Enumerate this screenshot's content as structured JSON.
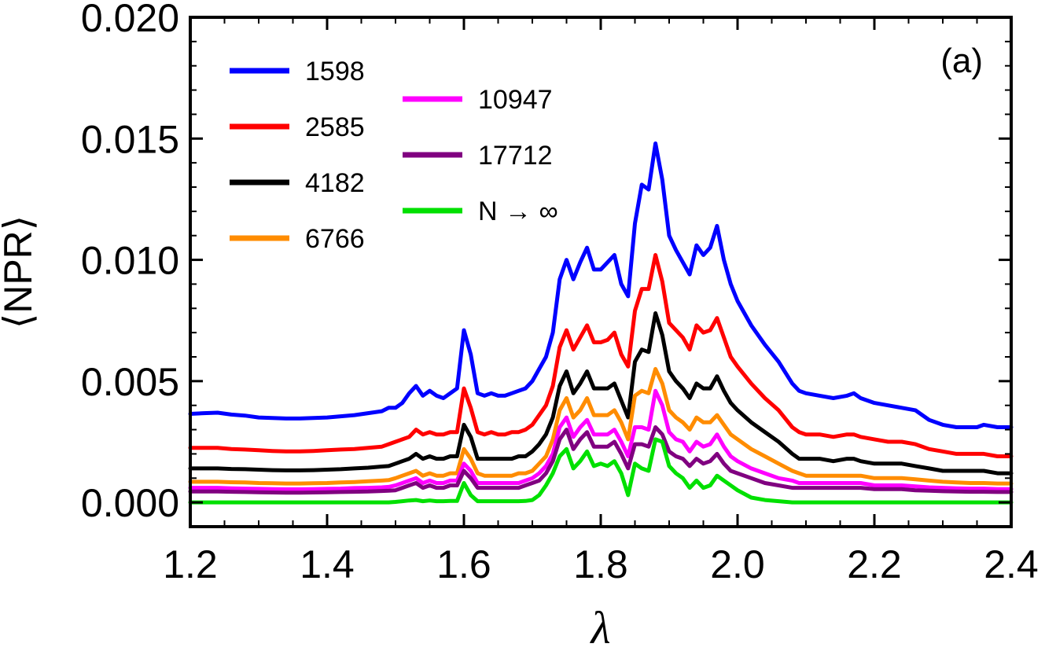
{
  "chart_data": {
    "type": "line",
    "title": "",
    "panel_label": "(a)",
    "xlabel": "λ",
    "ylabel": "⟨NPR⟩",
    "xlim": [
      1.2,
      2.4
    ],
    "ylim": [
      -0.001,
      0.02
    ],
    "xticks": [
      "1.2",
      "1.4",
      "1.6",
      "1.8",
      "2.0",
      "2.2",
      "2.4"
    ],
    "yticks": [
      "0.000",
      "0.005",
      "0.010",
      "0.015",
      "0.020"
    ],
    "grid": false,
    "legend_position": "top-left",
    "x": [
      1.2,
      1.22,
      1.24,
      1.26,
      1.28,
      1.3,
      1.32,
      1.34,
      1.36,
      1.38,
      1.4,
      1.42,
      1.44,
      1.46,
      1.48,
      1.49,
      1.5,
      1.51,
      1.52,
      1.53,
      1.54,
      1.55,
      1.56,
      1.57,
      1.58,
      1.59,
      1.6,
      1.61,
      1.62,
      1.63,
      1.64,
      1.65,
      1.66,
      1.67,
      1.68,
      1.69,
      1.7,
      1.71,
      1.72,
      1.73,
      1.74,
      1.75,
      1.76,
      1.77,
      1.78,
      1.79,
      1.8,
      1.81,
      1.82,
      1.83,
      1.84,
      1.85,
      1.86,
      1.87,
      1.88,
      1.89,
      1.9,
      1.91,
      1.92,
      1.93,
      1.94,
      1.95,
      1.96,
      1.97,
      1.98,
      1.99,
      2.0,
      2.02,
      2.04,
      2.06,
      2.08,
      2.09,
      2.1,
      2.12,
      2.14,
      2.16,
      2.17,
      2.18,
      2.2,
      2.22,
      2.24,
      2.26,
      2.28,
      2.3,
      2.32,
      2.34,
      2.35,
      2.36,
      2.38,
      2.4
    ],
    "series": [
      {
        "name": "1598",
        "color": "#0000ff",
        "values": [
          0.00365,
          0.00368,
          0.0037,
          0.00362,
          0.00358,
          0.0035,
          0.00348,
          0.00346,
          0.00346,
          0.00348,
          0.0035,
          0.00355,
          0.0036,
          0.00368,
          0.00376,
          0.0039,
          0.0039,
          0.0041,
          0.0045,
          0.0048,
          0.0044,
          0.0046,
          0.0044,
          0.0043,
          0.0045,
          0.0047,
          0.0071,
          0.0061,
          0.0045,
          0.0044,
          0.0045,
          0.0044,
          0.0044,
          0.0045,
          0.0046,
          0.0047,
          0.005,
          0.0055,
          0.006,
          0.007,
          0.0092,
          0.01,
          0.0092,
          0.0099,
          0.0105,
          0.0096,
          0.0096,
          0.0099,
          0.0102,
          0.009,
          0.0085,
          0.0115,
          0.0131,
          0.0129,
          0.0148,
          0.0133,
          0.011,
          0.0104,
          0.0099,
          0.0094,
          0.0106,
          0.0102,
          0.0105,
          0.0114,
          0.01,
          0.009,
          0.0083,
          0.0073,
          0.0065,
          0.0058,
          0.0049,
          0.0046,
          0.0045,
          0.0044,
          0.0043,
          0.0044,
          0.0045,
          0.0043,
          0.0041,
          0.004,
          0.0039,
          0.0038,
          0.0034,
          0.0032,
          0.0031,
          0.0031,
          0.0031,
          0.0032,
          0.0031,
          0.0031
        ]
      },
      {
        "name": "2585",
        "color": "#ff0000",
        "values": [
          0.00225,
          0.00225,
          0.00225,
          0.0022,
          0.00218,
          0.00215,
          0.00212,
          0.0021,
          0.0021,
          0.00212,
          0.00215,
          0.00218,
          0.0022,
          0.00225,
          0.0023,
          0.0024,
          0.0025,
          0.0026,
          0.0027,
          0.003,
          0.0028,
          0.0029,
          0.0028,
          0.0028,
          0.0029,
          0.0029,
          0.0047,
          0.0039,
          0.0029,
          0.0028,
          0.0029,
          0.0028,
          0.0028,
          0.0029,
          0.0029,
          0.003,
          0.0032,
          0.0036,
          0.004,
          0.0048,
          0.0064,
          0.0071,
          0.0063,
          0.0068,
          0.0073,
          0.0066,
          0.0066,
          0.0067,
          0.007,
          0.0061,
          0.0056,
          0.0079,
          0.0088,
          0.0088,
          0.0102,
          0.0091,
          0.0074,
          0.0071,
          0.0068,
          0.0063,
          0.0073,
          0.007,
          0.0071,
          0.0076,
          0.0068,
          0.006,
          0.0056,
          0.0049,
          0.0043,
          0.0038,
          0.0031,
          0.0029,
          0.0028,
          0.0028,
          0.0027,
          0.0028,
          0.0028,
          0.0027,
          0.0026,
          0.0025,
          0.0025,
          0.0024,
          0.0022,
          0.0021,
          0.002,
          0.002,
          0.002,
          0.002,
          0.0019,
          0.0019
        ]
      },
      {
        "name": "4182",
        "color": "#000000",
        "values": [
          0.0014,
          0.0014,
          0.0014,
          0.00138,
          0.00137,
          0.00135,
          0.00133,
          0.00132,
          0.00132,
          0.00133,
          0.00135,
          0.00137,
          0.0014,
          0.00143,
          0.00148,
          0.0015,
          0.0016,
          0.0017,
          0.0018,
          0.002,
          0.0018,
          0.0019,
          0.0018,
          0.0018,
          0.0019,
          0.0019,
          0.0032,
          0.0027,
          0.0018,
          0.0018,
          0.0018,
          0.0018,
          0.0018,
          0.0018,
          0.0019,
          0.0019,
          0.0021,
          0.0024,
          0.0028,
          0.0035,
          0.0048,
          0.0054,
          0.0045,
          0.0049,
          0.0054,
          0.0047,
          0.0047,
          0.0047,
          0.0049,
          0.0042,
          0.0035,
          0.0058,
          0.0063,
          0.0062,
          0.0078,
          0.0069,
          0.0054,
          0.005,
          0.0047,
          0.0043,
          0.0049,
          0.0047,
          0.0047,
          0.0052,
          0.0046,
          0.0041,
          0.0038,
          0.0033,
          0.0029,
          0.0025,
          0.002,
          0.0018,
          0.0018,
          0.0018,
          0.0017,
          0.0018,
          0.0018,
          0.0017,
          0.0016,
          0.0016,
          0.0016,
          0.0015,
          0.0014,
          0.0013,
          0.0013,
          0.0013,
          0.0013,
          0.0013,
          0.0012,
          0.0012
        ]
      },
      {
        "name": "6766",
        "color": "#ff8c00",
        "values": [
          0.00085,
          0.00085,
          0.00085,
          0.00083,
          0.00082,
          0.0008,
          0.00079,
          0.00078,
          0.00078,
          0.00079,
          0.0008,
          0.00082,
          0.00084,
          0.00087,
          0.0009,
          0.00092,
          0.001,
          0.0011,
          0.0012,
          0.0013,
          0.0011,
          0.0012,
          0.0011,
          0.0011,
          0.0012,
          0.0012,
          0.0022,
          0.0018,
          0.0012,
          0.0011,
          0.0011,
          0.0011,
          0.0011,
          0.0011,
          0.0012,
          0.0012,
          0.0013,
          0.0016,
          0.0019,
          0.0026,
          0.0038,
          0.0043,
          0.0035,
          0.0038,
          0.0043,
          0.0036,
          0.0036,
          0.0036,
          0.0038,
          0.0033,
          0.0026,
          0.0044,
          0.0046,
          0.0045,
          0.0055,
          0.0049,
          0.0038,
          0.0035,
          0.0033,
          0.003,
          0.0035,
          0.0033,
          0.0033,
          0.0036,
          0.0032,
          0.0028,
          0.0026,
          0.0022,
          0.0019,
          0.0016,
          0.0013,
          0.0012,
          0.0011,
          0.0011,
          0.0011,
          0.0011,
          0.0011,
          0.0011,
          0.001,
          0.001,
          0.001,
          0.00095,
          0.0009,
          0.00085,
          0.00082,
          0.0008,
          0.0008,
          0.0008,
          0.00078,
          0.00078
        ]
      },
      {
        "name": "10947",
        "color": "#ff00ff",
        "values": [
          0.0006,
          0.0006,
          0.0006,
          0.00058,
          0.00057,
          0.00056,
          0.00055,
          0.00054,
          0.00054,
          0.00055,
          0.00056,
          0.00057,
          0.00059,
          0.0006,
          0.00062,
          0.00064,
          0.0007,
          0.0008,
          0.0009,
          0.001,
          0.0008,
          0.0009,
          0.0008,
          0.0008,
          0.0009,
          0.0009,
          0.0016,
          0.0013,
          0.0008,
          0.0008,
          0.0008,
          0.0008,
          0.0008,
          0.0008,
          0.0008,
          0.0009,
          0.001,
          0.0012,
          0.0015,
          0.002,
          0.0031,
          0.0035,
          0.0027,
          0.0031,
          0.0034,
          0.0028,
          0.0028,
          0.0028,
          0.003,
          0.0025,
          0.0019,
          0.0031,
          0.0031,
          0.003,
          0.0046,
          0.004,
          0.0029,
          0.0026,
          0.0025,
          0.0021,
          0.0025,
          0.0023,
          0.0024,
          0.0028,
          0.0023,
          0.0019,
          0.0017,
          0.0014,
          0.0012,
          0.001,
          0.0009,
          0.0008,
          0.0008,
          0.0008,
          0.0008,
          0.0008,
          0.0008,
          0.0008,
          0.0007,
          0.0007,
          0.0007,
          0.00066,
          0.00062,
          0.0006,
          0.00058,
          0.00057,
          0.00057,
          0.00057,
          0.00055,
          0.00055
        ]
      },
      {
        "name": "17712",
        "color": "#800080",
        "values": [
          0.00045,
          0.00045,
          0.00045,
          0.00044,
          0.00043,
          0.00042,
          0.00041,
          0.0004,
          0.0004,
          0.00041,
          0.00042,
          0.00043,
          0.00044,
          0.00045,
          0.00047,
          0.00048,
          0.0005,
          0.0006,
          0.0007,
          0.0008,
          0.0006,
          0.0007,
          0.0006,
          0.0006,
          0.0007,
          0.0007,
          0.0013,
          0.001,
          0.0006,
          0.0006,
          0.0006,
          0.0006,
          0.0006,
          0.0006,
          0.0006,
          0.0007,
          0.0008,
          0.0009,
          0.0012,
          0.0017,
          0.0026,
          0.003,
          0.0022,
          0.0026,
          0.0029,
          0.0023,
          0.0023,
          0.0023,
          0.0025,
          0.002,
          0.0014,
          0.0024,
          0.0024,
          0.0023,
          0.0031,
          0.0028,
          0.0021,
          0.0019,
          0.0018,
          0.0015,
          0.0018,
          0.0016,
          0.0017,
          0.002,
          0.0016,
          0.0013,
          0.0012,
          0.001,
          0.0008,
          0.0007,
          0.0006,
          0.0006,
          0.0006,
          0.0006,
          0.0006,
          0.0006,
          0.0006,
          0.0006,
          0.00055,
          0.00055,
          0.00055,
          0.0005,
          0.00048,
          0.00046,
          0.00045,
          0.00044,
          0.00044,
          0.00044,
          0.00043,
          0.00043
        ]
      },
      {
        "name": "N → ∞",
        "color": "#00e000",
        "values": [
          0.0,
          0.0,
          0.0,
          0.0,
          0.0,
          0.0,
          0.0,
          0.0,
          0.0,
          0.0,
          0.0,
          0.0,
          0.0,
          0.0,
          0.0,
          0.0,
          2e-05,
          5e-05,
          8e-05,
          0.0001,
          5e-05,
          8e-05,
          5e-05,
          5e-05,
          6e-05,
          6e-05,
          0.0008,
          0.0003,
          5e-05,
          5e-05,
          5e-05,
          5e-05,
          5e-05,
          5e-05,
          5e-05,
          6e-05,
          0.0001,
          0.0003,
          0.0007,
          0.0012,
          0.0019,
          0.0022,
          0.0014,
          0.0017,
          0.0021,
          0.0015,
          0.0016,
          0.0015,
          0.0017,
          0.0012,
          0.0003,
          0.0016,
          0.0014,
          0.0013,
          0.0026,
          0.0025,
          0.0015,
          0.0012,
          0.001,
          0.0006,
          0.0009,
          0.0006,
          0.0007,
          0.0011,
          0.0009,
          0.0007,
          0.0005,
          0.0002,
          0.0001,
          5e-05,
          0.0,
          0.0,
          0.0,
          0.0,
          0.0,
          0.0,
          0.0,
          0.0,
          0.0,
          0.0,
          0.0,
          0.0,
          0.0,
          0.0,
          0.0,
          0.0,
          0.0,
          0.0,
          0.0,
          0.0
        ]
      }
    ]
  }
}
